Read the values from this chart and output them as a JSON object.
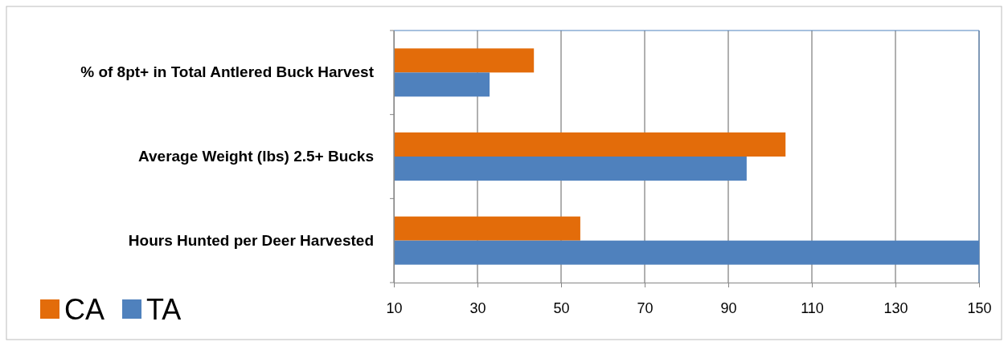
{
  "chart_data": {
    "type": "bar",
    "orientation": "horizontal",
    "categories": [
      "% of 8pt+ in Total Antlered Buck Harvest",
      "Average Weight (lbs) 2.5+ Bucks",
      "Hours Hunted per Deer Harvested"
    ],
    "series": [
      {
        "name": "CA",
        "color": "#e36c0a",
        "values": [
          43.5,
          103.7,
          54.6
        ]
      },
      {
        "name": "TA",
        "color": "#4f81bd",
        "values": [
          32.9,
          94.4,
          150
        ]
      }
    ],
    "xlim": [
      10,
      150
    ],
    "xticks": [
      10,
      30,
      50,
      70,
      90,
      110,
      130,
      150
    ],
    "grid": "x",
    "legend": "bottom left"
  }
}
